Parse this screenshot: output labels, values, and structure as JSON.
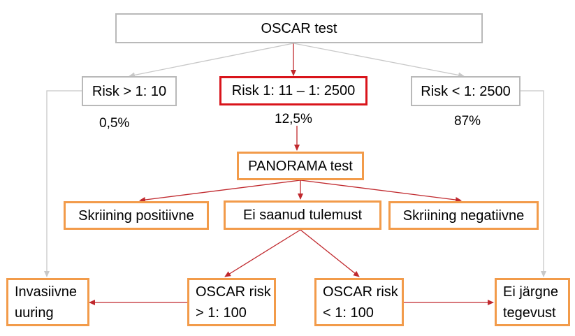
{
  "diagram": {
    "nodes": {
      "oscar_test": "OSCAR test",
      "risk_high": "Risk > 1: 10",
      "risk_mid": "Risk 1: 11 – 1: 2500",
      "risk_low": "Risk < 1: 2500",
      "panorama_test": "PANORAMA test",
      "screen_positive": "Skriining positiivne",
      "no_result": "Ei saanud tulemust",
      "screen_negative": "Skriining negatiivne",
      "invasive": {
        "line1": "Invasiivne",
        "line2": "uuring"
      },
      "oscar_risk_high": {
        "line1": "OSCAR risk",
        "line2": "> 1: 100"
      },
      "oscar_risk_low": {
        "line1": "OSCAR risk",
        "line2": "< 1: 100"
      },
      "no_action": {
        "line1": "Ei järgne",
        "line2": "tegevust"
      }
    },
    "percentages": {
      "risk_high": "0,5%",
      "risk_mid": "12,5%",
      "risk_low": "87%"
    },
    "colors": {
      "gray_border": "#b9b9b9",
      "red_border": "#d9141b",
      "orange_border": "#f29b4a",
      "red_arrow": "#c0282d",
      "gray_arrow": "#c8c8c8"
    }
  }
}
